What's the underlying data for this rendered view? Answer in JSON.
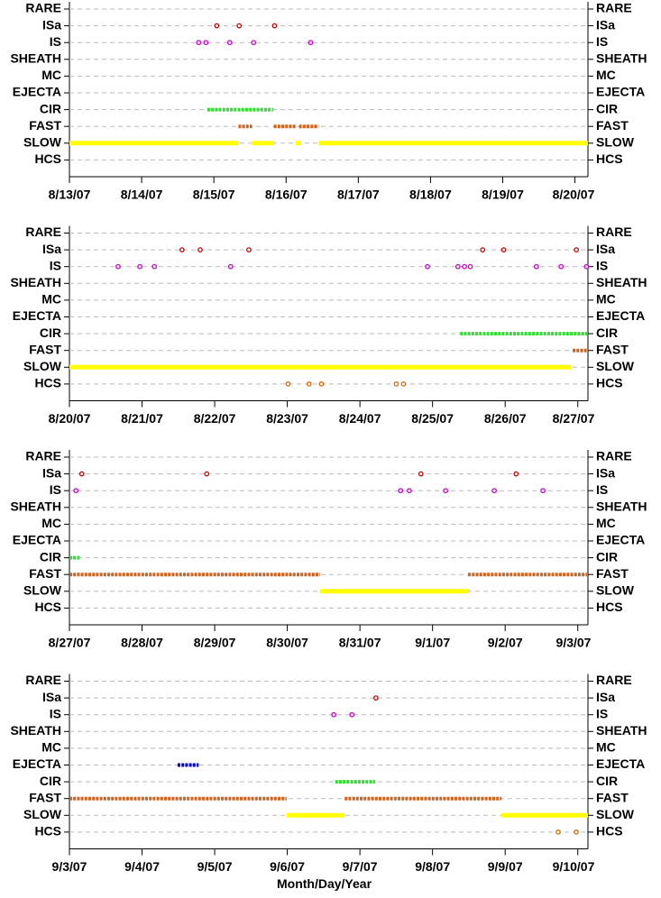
{
  "chart_data": [
    {
      "type": "timeline",
      "xlim": [
        13,
        20.18
      ],
      "xticks": [
        {
          "value": 13,
          "label": "8/13/07"
        },
        {
          "value": 14,
          "label": "8/14/07"
        },
        {
          "value": 15,
          "label": "8/15/07"
        },
        {
          "value": 16,
          "label": "8/16/07"
        },
        {
          "value": 17,
          "label": "8/17/07"
        },
        {
          "value": 18,
          "label": "8/18/07"
        },
        {
          "value": 19,
          "label": "8/19/07"
        },
        {
          "value": 20,
          "label": "8/20/07"
        }
      ],
      "series": [
        {
          "name": "RARE"
        },
        {
          "name": "ISa",
          "color": "#c00000",
          "points": [
            15.04,
            15.35,
            15.84
          ]
        },
        {
          "name": "IS",
          "color": "#cc00cc",
          "points": [
            14.79,
            14.89,
            15.22,
            15.55,
            16.34
          ]
        },
        {
          "name": "SHEATH"
        },
        {
          "name": "MC"
        },
        {
          "name": "EJECTA"
        },
        {
          "name": "CIR",
          "color": "#33dd33",
          "segments": [
            [
              14.91,
              15.82
            ]
          ]
        },
        {
          "name": "FAST",
          "color": "#cc6622",
          "segments": [
            [
              15.34,
              15.53
            ],
            [
              15.83,
              16.13
            ],
            [
              16.18,
              16.45
            ]
          ]
        },
        {
          "name": "SLOW",
          "color": "#ffff00",
          "segments": [
            [
              13,
              15.34
            ],
            [
              15.53,
              15.83
            ],
            [
              16.13,
              16.2
            ],
            [
              16.45,
              20.18
            ]
          ]
        },
        {
          "name": "HCS"
        }
      ]
    },
    {
      "type": "timeline",
      "xlim": [
        20,
        27.14
      ],
      "xticks": [
        {
          "value": 20,
          "label": "8/20/07"
        },
        {
          "value": 21,
          "label": "8/21/07"
        },
        {
          "value": 22,
          "label": "8/22/07"
        },
        {
          "value": 23,
          "label": "8/23/07"
        },
        {
          "value": 24,
          "label": "8/24/07"
        },
        {
          "value": 25,
          "label": "8/25/07"
        },
        {
          "value": 26,
          "label": "8/26/07"
        },
        {
          "value": 27,
          "label": "8/27/07"
        }
      ],
      "series": [
        {
          "name": "RARE"
        },
        {
          "name": "ISa",
          "color": "#c00000",
          "points": [
            21.55,
            21.8,
            22.47,
            25.69,
            25.98,
            26.98
          ]
        },
        {
          "name": "IS",
          "color": "#cc00cc",
          "points": [
            20.67,
            20.97,
            21.17,
            22.22,
            24.93,
            25.35,
            25.44,
            25.52,
            26.43,
            26.77,
            27.12
          ]
        },
        {
          "name": "SHEATH"
        },
        {
          "name": "MC"
        },
        {
          "name": "EJECTA"
        },
        {
          "name": "CIR",
          "color": "#33dd33",
          "segments": [
            [
              25.38,
              27.14
            ]
          ]
        },
        {
          "name": "FAST",
          "color": "#cc6622",
          "segments": [
            [
              26.93,
              27.14
            ]
          ]
        },
        {
          "name": "SLOW",
          "color": "#ffff00",
          "segments": [
            [
              20,
              26.91
            ]
          ]
        },
        {
          "name": "HCS",
          "color": "#dd6600",
          "points": [
            23.01,
            23.3,
            23.47,
            24.5,
            24.6
          ]
        }
      ]
    },
    {
      "type": "timeline",
      "xlim": [
        27,
        34.14
      ],
      "xticks": [
        {
          "value": 27,
          "label": "8/27/07"
        },
        {
          "value": 28,
          "label": "8/28/07"
        },
        {
          "value": 29,
          "label": "8/29/07"
        },
        {
          "value": 30,
          "label": "8/30/07"
        },
        {
          "value": 31,
          "label": "8/31/07"
        },
        {
          "value": 32,
          "label": "9/1/07"
        },
        {
          "value": 33,
          "label": "9/2/07"
        },
        {
          "value": 34,
          "label": "9/3/07"
        }
      ],
      "series": [
        {
          "name": "RARE"
        },
        {
          "name": "ISa",
          "color": "#c00000",
          "points": [
            27.17,
            28.89,
            31.84,
            33.15
          ]
        },
        {
          "name": "IS",
          "color": "#cc00cc",
          "points": [
            27.09,
            31.56,
            31.68,
            32.18,
            32.85,
            33.52
          ]
        },
        {
          "name": "SHEATH"
        },
        {
          "name": "MC"
        },
        {
          "name": "EJECTA"
        },
        {
          "name": "CIR",
          "color": "#33dd33",
          "segments": [
            [
              27,
              27.14
            ]
          ]
        },
        {
          "name": "FAST",
          "color": "#cc6622",
          "segments": [
            [
              27,
              30.45
            ],
            [
              32.49,
              34.14
            ]
          ]
        },
        {
          "name": "SLOW",
          "color": "#ffff00",
          "segments": [
            [
              30.45,
              32.49
            ]
          ]
        },
        {
          "name": "HCS"
        }
      ]
    },
    {
      "type": "timeline",
      "xlim": [
        34,
        41.14
      ],
      "xlabel": "Month/Day/Year",
      "xticks": [
        {
          "value": 34,
          "label": "9/3/07"
        },
        {
          "value": 35,
          "label": "9/4/07"
        },
        {
          "value": 36,
          "label": "9/5/07"
        },
        {
          "value": 37,
          "label": "9/6/07"
        },
        {
          "value": 38,
          "label": "9/7/07"
        },
        {
          "value": 39,
          "label": "9/8/07"
        },
        {
          "value": 40,
          "label": "9/9/07"
        },
        {
          "value": 41,
          "label": "9/10/07"
        }
      ],
      "series": [
        {
          "name": "RARE"
        },
        {
          "name": "ISa",
          "color": "#c00000",
          "points": [
            38.22
          ]
        },
        {
          "name": "IS",
          "color": "#cc00cc",
          "points": [
            37.64,
            37.89
          ]
        },
        {
          "name": "SHEATH"
        },
        {
          "name": "MC"
        },
        {
          "name": "EJECTA",
          "color": "#0000dd",
          "segments": [
            [
              35.49,
              35.78
            ]
          ]
        },
        {
          "name": "CIR",
          "color": "#33dd33",
          "segments": [
            [
              37.66,
              38.21
            ]
          ]
        },
        {
          "name": "FAST",
          "color": "#cc6622",
          "segments": [
            [
              34,
              36.99
            ],
            [
              37.79,
              39.95
            ]
          ]
        },
        {
          "name": "SLOW",
          "color": "#ffff00",
          "segments": [
            [
              36.99,
              37.79
            ],
            [
              39.95,
              41.14
            ]
          ]
        },
        {
          "name": "HCS",
          "color": "#dd6600",
          "points": [
            40.73,
            40.98
          ]
        }
      ]
    }
  ]
}
